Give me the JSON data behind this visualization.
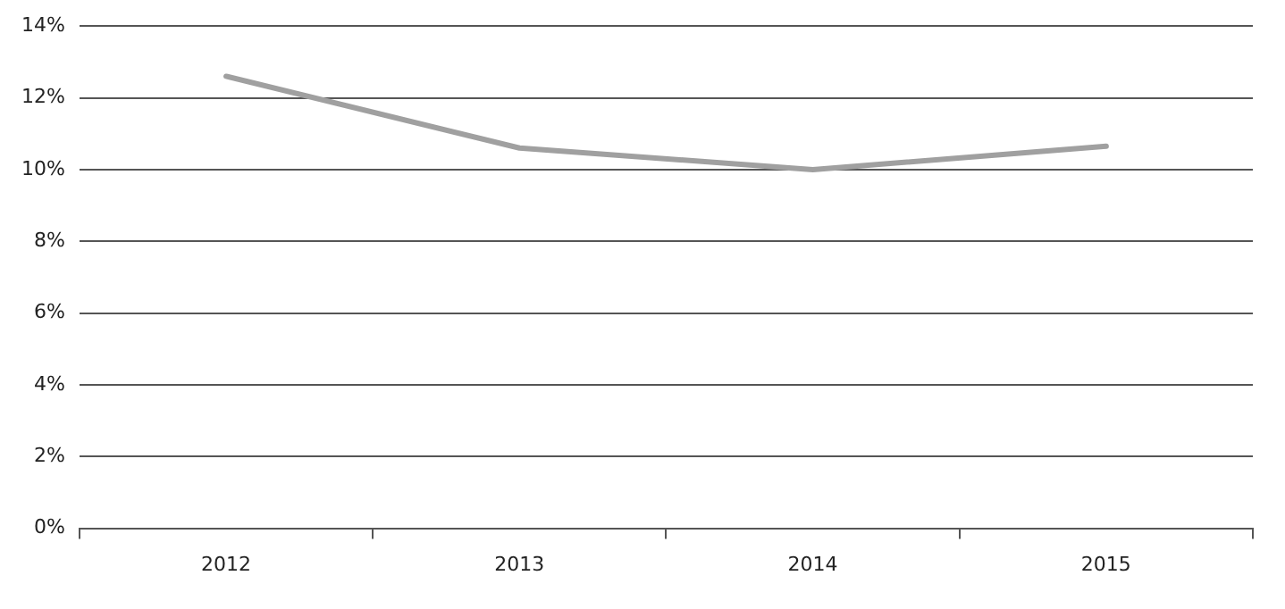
{
  "chart_data": {
    "type": "line",
    "categories": [
      "2012",
      "2013",
      "2014",
      "2015"
    ],
    "series": [
      {
        "color": "#a0a0a0",
        "values": [
          12.6,
          10.6,
          10.0,
          10.65
        ]
      }
    ],
    "ylim": [
      0,
      14
    ],
    "yticks": [
      {
        "value": 0,
        "label": "0%"
      },
      {
        "value": 2,
        "label": "2%"
      },
      {
        "value": 4,
        "label": "4%"
      },
      {
        "value": 6,
        "label": "6%"
      },
      {
        "value": 8,
        "label": "8%"
      },
      {
        "value": 10,
        "label": "10%"
      },
      {
        "value": 12,
        "label": "12%"
      },
      {
        "value": 14,
        "label": "14%"
      }
    ],
    "grid": "y",
    "legend": false,
    "marker": "none",
    "line_style": "solid"
  }
}
